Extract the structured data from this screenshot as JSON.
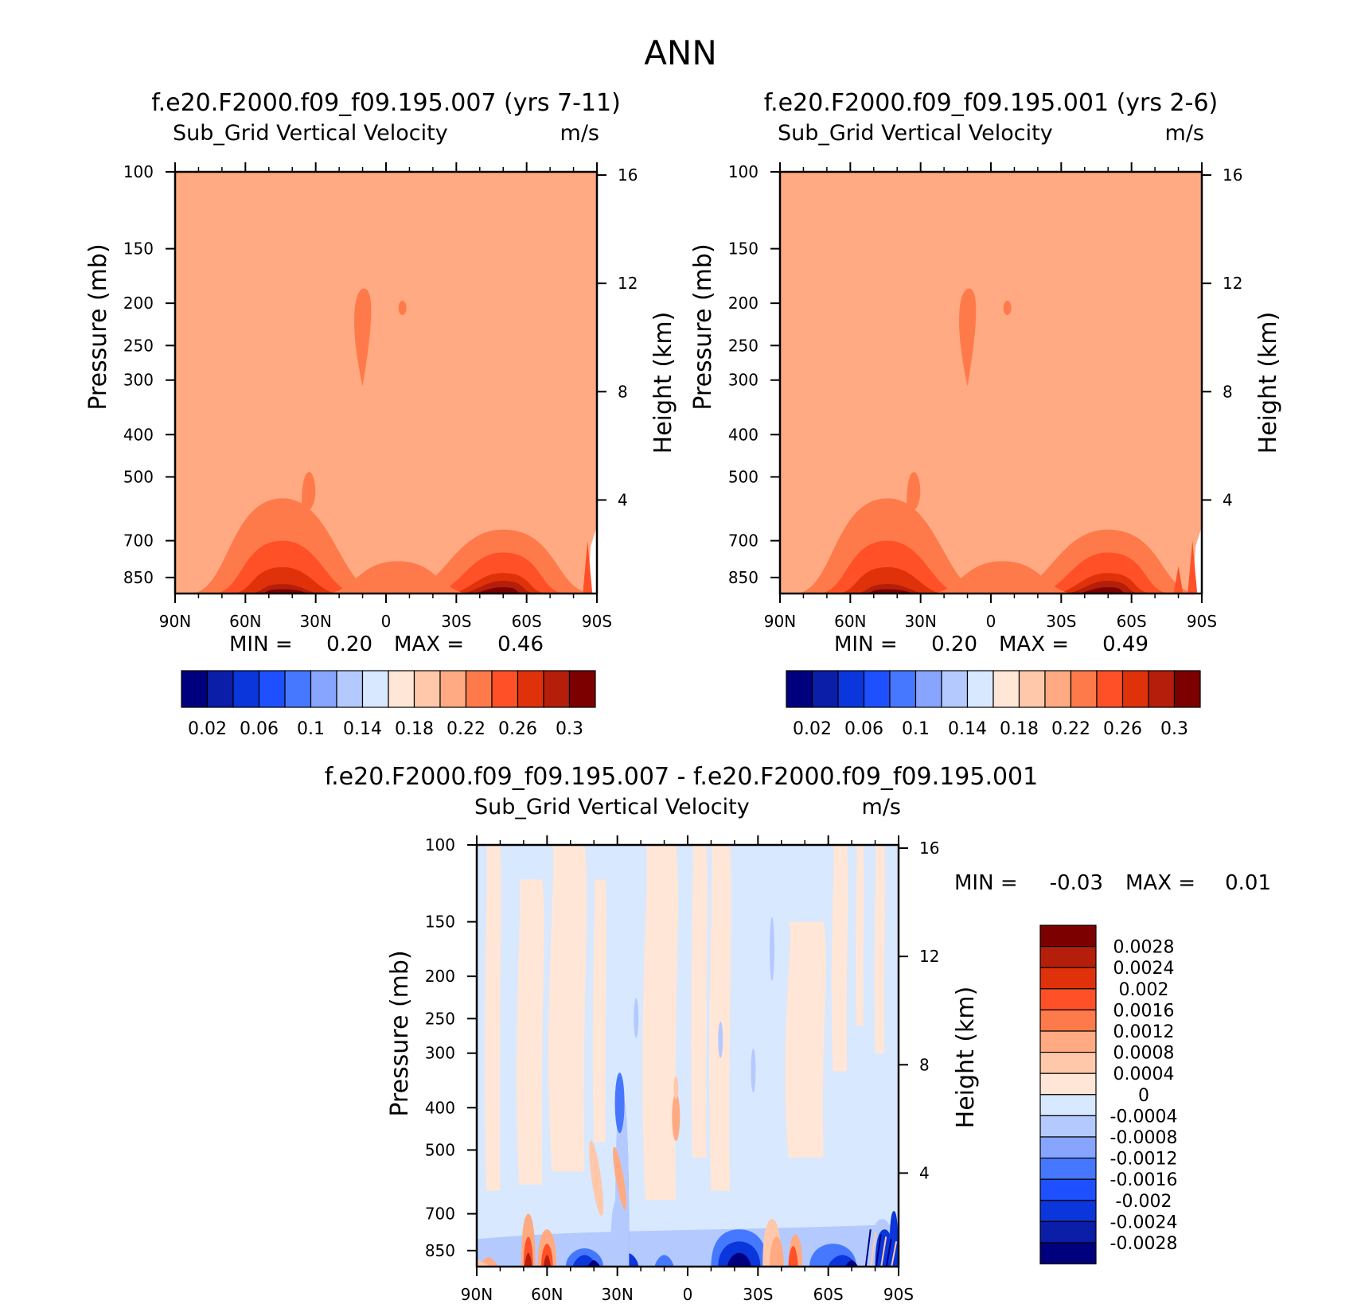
{
  "page_title": "ANN",
  "colors": {
    "contours": [
      "#00007f",
      "#0a1ea8",
      "#0a36dc",
      "#1e50ff",
      "#4678ff",
      "#87a5ff",
      "#b4caff",
      "#d8e8ff",
      "#ffe6d6",
      "#ffc8aa",
      "#ffaa82",
      "#ff7a4a",
      "#ff5028",
      "#e0320a",
      "#b41e0a",
      "#7d0000"
    ],
    "diff": {
      "neg_max": "#00007f",
      "neg_strong": "#0a36dc",
      "neg_mid": "#4678ff",
      "neg_weak": "#b4caff",
      "neg_faint": "#d8e8ff",
      "pos_faint": "#ffe6d6",
      "pos_weak": "#ffc8aa",
      "pos_mid": "#ffaa82",
      "pos_strong": "#ff5028",
      "pos_max": "#b41e0a"
    }
  },
  "chart_data": [
    {
      "type": "heatmap",
      "id": "panel-1",
      "title": "f.e20.F2000.f09_f09.195.007 (yrs 7-11)",
      "variable": "Sub_Grid Vertical Velocity",
      "units": "m/s",
      "ylabel": "Pressure (mb)",
      "ylabel_right": "Height (km)",
      "x_ticks": [
        "90N",
        "60N",
        "30N",
        "0",
        "30S",
        "60S",
        "90S"
      ],
      "y_ticks": [
        100,
        150,
        200,
        250,
        300,
        400,
        500,
        700,
        850
      ],
      "y_right_ticks": [
        16,
        12,
        8,
        4
      ],
      "min_label": "MIN =",
      "max_label": "MAX =",
      "min_value": "0.20",
      "max_value": "0.46",
      "levels": [
        0.02,
        0.04,
        0.06,
        0.08,
        0.1,
        0.12,
        0.14,
        0.16,
        0.18,
        0.2,
        0.22,
        0.24,
        0.26,
        0.28,
        0.3
      ],
      "colorbar_labels": [
        "0.02",
        "0.06",
        "0.1",
        "0.14",
        "0.18",
        "0.22",
        "0.26",
        "0.3"
      ],
      "background_level": 0.21
    },
    {
      "type": "heatmap",
      "id": "panel-2",
      "title": "f.e20.F2000.f09_f09.195.001 (yrs 2-6)",
      "variable": "Sub_Grid Vertical Velocity",
      "units": "m/s",
      "ylabel": "Pressure (mb)",
      "ylabel_right": "Height (km)",
      "x_ticks": [
        "90N",
        "60N",
        "30N",
        "0",
        "30S",
        "60S",
        "90S"
      ],
      "y_ticks": [
        100,
        150,
        200,
        250,
        300,
        400,
        500,
        700,
        850
      ],
      "y_right_ticks": [
        16,
        12,
        8,
        4
      ],
      "min_label": "MIN =",
      "max_label": "MAX =",
      "min_value": "0.20",
      "max_value": "0.49",
      "levels": [
        0.02,
        0.04,
        0.06,
        0.08,
        0.1,
        0.12,
        0.14,
        0.16,
        0.18,
        0.2,
        0.22,
        0.24,
        0.26,
        0.28,
        0.3
      ],
      "colorbar_labels": [
        "0.02",
        "0.06",
        "0.1",
        "0.14",
        "0.18",
        "0.22",
        "0.26",
        "0.3"
      ],
      "background_level": 0.21
    },
    {
      "type": "heatmap",
      "id": "panel-diff",
      "title": "f.e20.F2000.f09_f09.195.007 - f.e20.F2000.f09_f09.195.001",
      "variable": "Sub_Grid Vertical Velocity",
      "units": "m/s",
      "ylabel": "Pressure (mb)",
      "ylabel_right": "Height (km)",
      "x_ticks": [
        "90N",
        "60N",
        "30N",
        "0",
        "30S",
        "60S",
        "90S"
      ],
      "y_ticks": [
        100,
        150,
        200,
        250,
        300,
        400,
        500,
        700,
        850
      ],
      "y_right_ticks": [
        16,
        12,
        8,
        4
      ],
      "min_label": "MIN =",
      "max_label": "MAX =",
      "min_value": "-0.03",
      "max_value": "0.01",
      "levels": [
        -0.0028,
        -0.0024,
        -0.002,
        -0.0016,
        -0.0012,
        -0.0008,
        -0.0004,
        0,
        0.0004,
        0.0008,
        0.0012,
        0.0016,
        0.002,
        0.0024,
        0.0028
      ],
      "colorbar_labels": [
        "0.0028",
        "0.0024",
        "0.002",
        "0.0016",
        "0.0012",
        "0.0008",
        "0.0004",
        "0",
        "-0.0004",
        "-0.0008",
        "-0.0012",
        "-0.0016",
        "-0.002",
        "-0.0024",
        "-0.0028"
      ]
    }
  ]
}
